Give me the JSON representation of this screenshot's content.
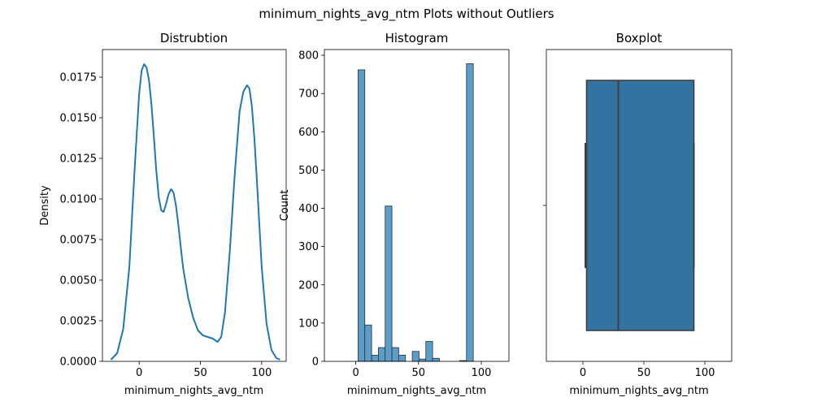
{
  "figure_title": "minimum_nights_avg_ntm Plots without Outliers",
  "colors": {
    "line": "#1f77b4",
    "hist_fill": "#5b9dc9",
    "hist_edge": "#303030",
    "box_fill": "#3274a1",
    "box_edge": "#3f3f3f"
  },
  "chart_data": [
    {
      "type": "line",
      "title": "Distrubtion",
      "xlabel": "minimum_nights_avg_ntm",
      "ylabel": "Density",
      "xlim": [
        -30,
        120
      ],
      "ylim": [
        0,
        0.0192
      ],
      "xticks": [
        "0",
        "50",
        "100"
      ],
      "xtick_values": [
        0,
        50,
        100
      ],
      "yticks": [
        "0.0000",
        "0.0025",
        "0.0050",
        "0.0075",
        "0.0100",
        "0.0125",
        "0.0150",
        "0.0175"
      ],
      "ytick_values": [
        0,
        0.0025,
        0.005,
        0.0075,
        0.01,
        0.0125,
        0.015,
        0.0175
      ],
      "x": [
        -23,
        -18,
        -13,
        -8,
        -4,
        0,
        2,
        4,
        6,
        8,
        10,
        12,
        14,
        16,
        18,
        20,
        22,
        24,
        26,
        28,
        30,
        32,
        34,
        36,
        40,
        44,
        48,
        52,
        56,
        60,
        64,
        67,
        70,
        74,
        78,
        82,
        85,
        88,
        90,
        92,
        94,
        96,
        98,
        100,
        104,
        108,
        112,
        115
      ],
      "y": [
        0.0001,
        0.0005,
        0.002,
        0.0058,
        0.0115,
        0.0165,
        0.0179,
        0.0183,
        0.0181,
        0.0173,
        0.0158,
        0.0138,
        0.0117,
        0.0101,
        0.0093,
        0.0092,
        0.0097,
        0.0103,
        0.0106,
        0.0104,
        0.0096,
        0.0084,
        0.007,
        0.0057,
        0.0039,
        0.0027,
        0.0019,
        0.0016,
        0.0015,
        0.0014,
        0.0012,
        0.0015,
        0.003,
        0.0068,
        0.0115,
        0.0154,
        0.0166,
        0.017,
        0.0168,
        0.0157,
        0.0138,
        0.0113,
        0.0085,
        0.0058,
        0.0023,
        0.0007,
        0.0002,
        0.0001
      ]
    },
    {
      "type": "bar",
      "title": "Histogram",
      "xlabel": "minimum_nights_avg_ntm",
      "ylabel": "Count",
      "xlim": [
        -25,
        122
      ],
      "ylim": [
        0,
        815
      ],
      "xticks": [
        "0",
        "50",
        "100"
      ],
      "xtick_values": [
        0,
        50,
        100
      ],
      "yticks": [
        "0",
        "100",
        "200",
        "300",
        "400",
        "500",
        "600",
        "700",
        "800"
      ],
      "ytick_values": [
        0,
        100,
        200,
        300,
        400,
        500,
        600,
        700,
        800
      ],
      "bins": [
        {
          "x0": 1.8,
          "x1": 7.2,
          "count": 762
        },
        {
          "x0": 7.2,
          "x1": 12.6,
          "count": 95
        },
        {
          "x0": 12.6,
          "x1": 18.0,
          "count": 16
        },
        {
          "x0": 18.0,
          "x1": 23.4,
          "count": 36
        },
        {
          "x0": 23.4,
          "x1": 28.8,
          "count": 406
        },
        {
          "x0": 28.8,
          "x1": 34.2,
          "count": 36
        },
        {
          "x0": 34.2,
          "x1": 39.6,
          "count": 16
        },
        {
          "x0": 39.6,
          "x1": 45.0,
          "count": 0
        },
        {
          "x0": 45.0,
          "x1": 50.4,
          "count": 26
        },
        {
          "x0": 50.4,
          "x1": 55.8,
          "count": 6
        },
        {
          "x0": 55.8,
          "x1": 61.2,
          "count": 52
        },
        {
          "x0": 61.2,
          "x1": 66.6,
          "count": 8
        },
        {
          "x0": 66.6,
          "x1": 72.0,
          "count": 0
        },
        {
          "x0": 72.0,
          "x1": 77.4,
          "count": 0
        },
        {
          "x0": 77.4,
          "x1": 82.8,
          "count": 0
        },
        {
          "x0": 82.8,
          "x1": 88.2,
          "count": 2
        },
        {
          "x0": 88.2,
          "x1": 93.6,
          "count": 778
        }
      ]
    },
    {
      "type": "box",
      "title": "Boxplot",
      "xlabel": "minimum_nights_avg_ntm",
      "xlim": [
        -30,
        122
      ],
      "xticks": [
        "0",
        "50",
        "100"
      ],
      "xtick_values": [
        0,
        50,
        100
      ],
      "min": 2,
      "q1": 3,
      "median": 29,
      "q3": 91,
      "max": 91
    }
  ]
}
